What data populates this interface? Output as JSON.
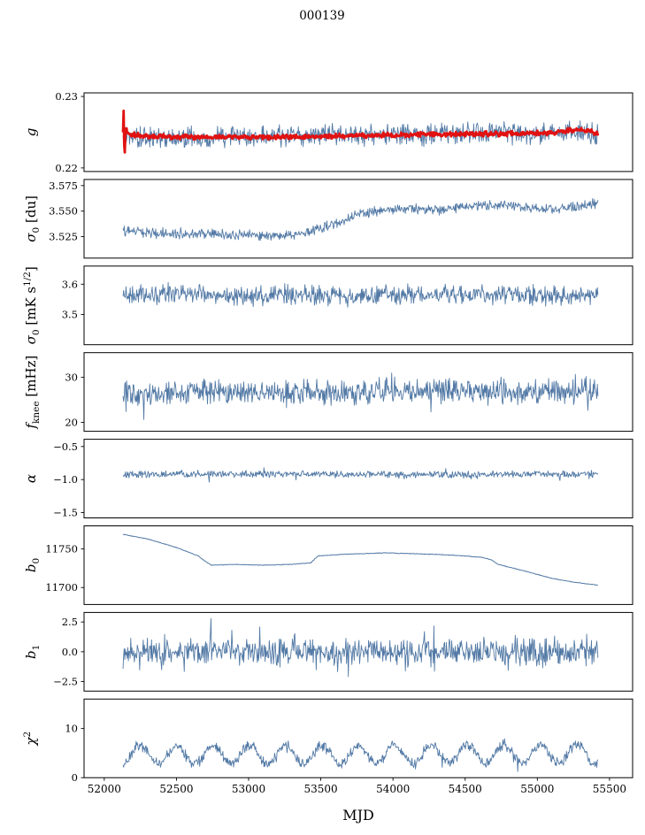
{
  "chart_data": {
    "type": "line",
    "title": "000139",
    "xlabel": "MJD",
    "xlim": [
      51860,
      55660
    ],
    "x_ticks": [
      52000,
      52500,
      53000,
      53500,
      54000,
      54500,
      55000,
      55500
    ],
    "x_tick_labels": [
      "52000",
      "52500",
      "53000",
      "53500",
      "54000",
      "54500",
      "55000",
      "55500"
    ],
    "x_range_data": [
      52130,
      55420
    ],
    "n_points": 800,
    "seed": 139,
    "grid": false,
    "legend": "none",
    "colors": {
      "line": "#5279a5",
      "overlay": "#e11212",
      "axis": "#000000"
    },
    "panels": [
      {
        "id": "g",
        "ylabel_parts": [
          {
            "t": "g",
            "i": true
          }
        ],
        "ylim": [
          0.2195,
          0.2305
        ],
        "yticks": [
          0.22,
          0.23
        ],
        "ytick_labels": [
          "0.22",
          "0.23"
        ],
        "series": [
          {
            "color": "line",
            "width": 0.9,
            "noise": 0.0018,
            "keypoints": [
              [
                52130,
                0.2247
              ],
              [
                52200,
                0.2243
              ],
              [
                52500,
                0.2242
              ],
              [
                52900,
                0.2243
              ],
              [
                53300,
                0.2244
              ],
              [
                53700,
                0.2247
              ],
              [
                54000,
                0.2247
              ],
              [
                54300,
                0.2246
              ],
              [
                54600,
                0.2249
              ],
              [
                54900,
                0.2248
              ],
              [
                55100,
                0.2248
              ],
              [
                55250,
                0.2253
              ],
              [
                55420,
                0.2246
              ]
            ]
          },
          {
            "color": "overlay",
            "width": 2.8,
            "noise": 0.0004,
            "keypoints": [
              [
                52130,
                0.2252
              ],
              [
                52133,
                0.2297
              ],
              [
                52140,
                0.2209
              ],
              [
                52148,
                0.2257
              ],
              [
                52165,
                0.2248
              ],
              [
                52250,
                0.2245
              ],
              [
                52500,
                0.2243
              ],
              [
                53000,
                0.2243
              ],
              [
                53500,
                0.2244
              ],
              [
                54000,
                0.2246
              ],
              [
                54400,
                0.2247
              ],
              [
                54800,
                0.2248
              ],
              [
                55100,
                0.2249
              ],
              [
                55250,
                0.2254
              ],
              [
                55350,
                0.2251
              ],
              [
                55420,
                0.2248
              ]
            ]
          }
        ]
      },
      {
        "id": "sigma0-du",
        "ylabel_parts": [
          {
            "t": "σ",
            "i": true
          },
          {
            "t": "0",
            "sub": true
          },
          {
            "t": " [du]"
          }
        ],
        "ylim": [
          3.504,
          3.581
        ],
        "yticks": [
          3.525,
          3.55,
          3.575
        ],
        "ytick_labels": [
          "3.525",
          "3.550",
          "3.575"
        ],
        "series": [
          {
            "color": "line",
            "width": 0.9,
            "noise": 0.006,
            "keypoints": [
              [
                52130,
                3.531
              ],
              [
                52300,
                3.529
              ],
              [
                52600,
                3.528
              ],
              [
                52900,
                3.527
              ],
              [
                53150,
                3.526
              ],
              [
                53350,
                3.527
              ],
              [
                53500,
                3.533
              ],
              [
                53650,
                3.541
              ],
              [
                53800,
                3.549
              ],
              [
                53950,
                3.551
              ],
              [
                54150,
                3.552
              ],
              [
                54350,
                3.551
              ],
              [
                54550,
                3.555
              ],
              [
                54750,
                3.556
              ],
              [
                54950,
                3.553
              ],
              [
                55150,
                3.552
              ],
              [
                55300,
                3.555
              ],
              [
                55420,
                3.559
              ]
            ]
          }
        ]
      },
      {
        "id": "sigma0-mks",
        "ylabel_parts": [
          {
            "t": "σ",
            "i": true
          },
          {
            "t": "0",
            "sub": true
          },
          {
            "t": " [mK s"
          },
          {
            "t": "1/2",
            "sup": true
          },
          {
            "t": "]"
          }
        ],
        "ylim": [
          3.4,
          3.66
        ],
        "yticks": [
          3.5,
          3.6
        ],
        "ytick_labels": [
          "3.5",
          "3.6"
        ],
        "series": [
          {
            "color": "line",
            "width": 0.9,
            "noise": 0.04,
            "keypoints": [
              [
                52130,
                3.562
              ],
              [
                52500,
                3.568
              ],
              [
                52900,
                3.56
              ],
              [
                53300,
                3.567
              ],
              [
                53700,
                3.562
              ],
              [
                54100,
                3.566
              ],
              [
                54500,
                3.563
              ],
              [
                54900,
                3.567
              ],
              [
                55200,
                3.56
              ],
              [
                55420,
                3.564
              ]
            ]
          }
        ]
      },
      {
        "id": "fknee",
        "ylabel_parts": [
          {
            "t": "f",
            "i": true
          },
          {
            "t": "knee",
            "sub": true
          },
          {
            "t": " [mHz]"
          }
        ],
        "ylim": [
          18,
          35.5
        ],
        "yticks": [
          20,
          30
        ],
        "ytick_labels": [
          "20",
          "30"
        ],
        "series": [
          {
            "color": "line",
            "width": 0.9,
            "noise": 3.4,
            "spike_prob": 0.05,
            "spike_amp": 3.5,
            "clamp": [
              18.5,
              35.0
            ],
            "keypoints": [
              [
                52130,
                26.3
              ],
              [
                52800,
                26.8
              ],
              [
                53500,
                26.4
              ],
              [
                54200,
                26.9
              ],
              [
                54900,
                26.5
              ],
              [
                55420,
                27.0
              ]
            ]
          }
        ]
      },
      {
        "id": "alpha",
        "ylabel_parts": [
          {
            "t": "α",
            "i": true
          }
        ],
        "ylim": [
          -1.58,
          -0.39
        ],
        "yticks": [
          -1.5,
          -1.0,
          -0.5
        ],
        "ytick_labels": [
          "−1.5",
          "−1.0",
          "−0.5"
        ],
        "series": [
          {
            "color": "line",
            "width": 0.9,
            "noise": 0.06,
            "spike_prob": 0.03,
            "spike_amp": 0.1,
            "keypoints": [
              [
                52130,
                -0.92
              ],
              [
                53000,
                -0.915
              ],
              [
                54000,
                -0.925
              ],
              [
                55420,
                -0.915
              ]
            ]
          }
        ]
      },
      {
        "id": "b0",
        "ylabel_parts": [
          {
            "t": "b",
            "i": true
          },
          {
            "t": "0",
            "sub": true
          }
        ],
        "ylim": [
          11678,
          11780
        ],
        "yticks": [
          11700,
          11750
        ],
        "ytick_labels": [
          "11700",
          "11750"
        ],
        "series": [
          {
            "color": "line",
            "width": 1.0,
            "noise": 0.5,
            "keypoints": [
              [
                52130,
                11769
              ],
              [
                52300,
                11763
              ],
              [
                52500,
                11752
              ],
              [
                52650,
                11741
              ],
              [
                52700,
                11734
              ],
              [
                52740,
                11729
              ],
              [
                52900,
                11730
              ],
              [
                53100,
                11729
              ],
              [
                53300,
                11730
              ],
              [
                53430,
                11732
              ],
              [
                53480,
                11741
              ],
              [
                53650,
                11743
              ],
              [
                53800,
                11744
              ],
              [
                53950,
                11745
              ],
              [
                54100,
                11744
              ],
              [
                54300,
                11743
              ],
              [
                54500,
                11741
              ],
              [
                54620,
                11739
              ],
              [
                54680,
                11736
              ],
              [
                54730,
                11730
              ],
              [
                54900,
                11722
              ],
              [
                55100,
                11712
              ],
              [
                55250,
                11707
              ],
              [
                55420,
                11703
              ]
            ]
          }
        ]
      },
      {
        "id": "b1",
        "ylabel_parts": [
          {
            "t": "b",
            "i": true
          },
          {
            "t": "1",
            "sub": true
          }
        ],
        "ylim": [
          -3.3,
          3.3
        ],
        "yticks": [
          -2.5,
          0.0,
          2.5
        ],
        "ytick_labels": [
          "−2.5",
          "0.0",
          "2.5"
        ],
        "series": [
          {
            "color": "line",
            "width": 0.9,
            "noise": 1.3,
            "spike_prob": 0.08,
            "spike_amp": 1.8,
            "clamp": [
              -3.2,
              3.05
            ],
            "keypoints": [
              [
                52130,
                0.0
              ],
              [
                55420,
                0.0
              ]
            ]
          }
        ]
      },
      {
        "id": "chi2",
        "ylabel_parts": [
          {
            "t": "χ",
            "i": true
          },
          {
            "t": "2",
            "sup": true
          }
        ],
        "ylim": [
          0,
          16
        ],
        "yticks": [
          0,
          10
        ],
        "ytick_labels": [
          "0",
          "10"
        ],
        "series": [
          {
            "color": "line",
            "width": 0.9,
            "noise": 1.3,
            "spike_prob": 0.03,
            "spike_amp": 2.5,
            "osc": {
              "amp": 1.9,
              "period": 252,
              "phase": -1.4
            },
            "clamp": [
              0.4,
              15.0
            ],
            "keypoints": [
              [
                52130,
                4.6
              ],
              [
                55420,
                4.8
              ]
            ]
          }
        ]
      }
    ]
  }
}
